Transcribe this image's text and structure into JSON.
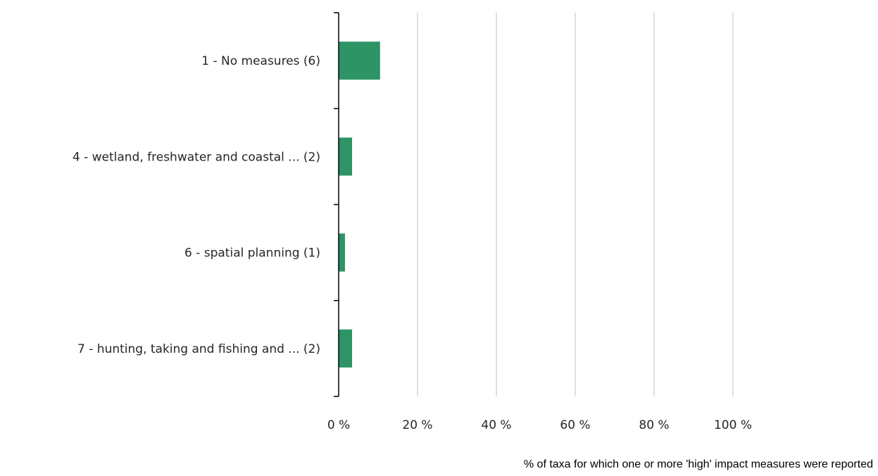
{
  "chart_data": {
    "type": "bar",
    "orientation": "horizontal",
    "categories": [
      "1 - No measures (6)",
      "4 - wetland, freshwater and coastal ... (2)",
      "6 - spatial planning (1)",
      "7 - hunting, taking and fishing and ... (2)"
    ],
    "values": [
      10.5,
      3.4,
      1.6,
      3.4
    ],
    "xlim": [
      0,
      100
    ],
    "xticks": [
      0,
      20,
      40,
      60,
      80,
      100
    ],
    "xtick_labels": [
      "0 %",
      "20 %",
      "40 %",
      "60 %",
      "80 %",
      "100 %"
    ],
    "xlabel": "% of taxa for which one or more 'high' impact measures were reported",
    "grid": "vertical",
    "legend": "none",
    "colors": {
      "bar": "#2e9466",
      "grid": "#bfbfbf",
      "axis": "#000000"
    }
  }
}
